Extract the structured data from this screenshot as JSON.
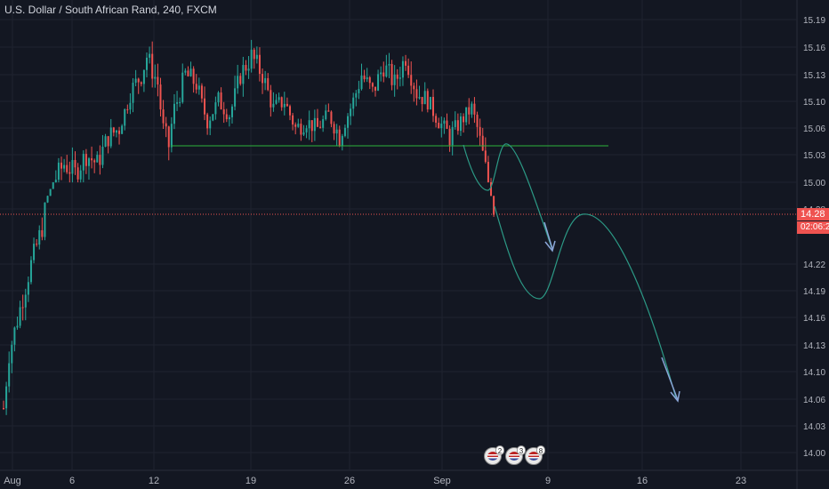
{
  "header": {
    "symbol_title": "U.S. Dollar / South African Rand, 240, FXCM"
  },
  "current_price": {
    "label": "14.28",
    "countdown": "02:06:2"
  },
  "colors": {
    "background": "#131722",
    "grid": "#1f2330",
    "up": "#26a69a",
    "down": "#ef5350",
    "support_line": "#2db33b",
    "projection": "#2c9a86",
    "arrow": "#8aa6d8",
    "price_line": "#ef5350",
    "axis_text": "#b2b5be"
  },
  "events": [
    {
      "icon": "us-flag-icon",
      "count": "2"
    },
    {
      "icon": "us-flag-icon",
      "count": "3"
    },
    {
      "icon": "us-flag-icon",
      "count": "8"
    }
  ],
  "chart_data": {
    "type": "candlestick",
    "title": "U.S. Dollar / South African Rand, 240, FXCM",
    "xlabel": "",
    "ylabel": "",
    "ylim": [
      13.97,
      15.22
    ],
    "y_ticks": [
      "15.19",
      "15.16",
      "15.13",
      "15.10",
      "15.06",
      "15.03",
      "15.00",
      "14.28",
      "14.22",
      "14.19",
      "14.16",
      "14.13",
      "14.10",
      "14.06",
      "14.03",
      "14.00"
    ],
    "y_tick_values": [
      15.19,
      15.16,
      15.13,
      15.1,
      15.06,
      15.03,
      15.0,
      14.28,
      14.22,
      14.19,
      14.16,
      14.13,
      14.1,
      14.06,
      14.03,
      14.0
    ],
    "x_ticks": [
      "Aug",
      "6",
      "12",
      "19",
      "26",
      "Sep",
      "9",
      "16",
      "23"
    ],
    "x_tick_bars": [
      0,
      24,
      54,
      90,
      126,
      156,
      180,
      210,
      240
    ],
    "bars_per_day": 6,
    "trend_description": "Strong rally from ~14.05 in early Aug to ~15.15 by Aug 12, ranging 15.03-15.16 through end of Aug, then sharp drop to ~14.28 in early Sep",
    "support_level": 15.04,
    "last_price": 14.28,
    "projection": {
      "description": "Hand-drawn projected path",
      "points_price": [
        15.06,
        14.99,
        15.04,
        14.29,
        14.26,
        14.18,
        14.29,
        14.13,
        14.06
      ]
    }
  }
}
